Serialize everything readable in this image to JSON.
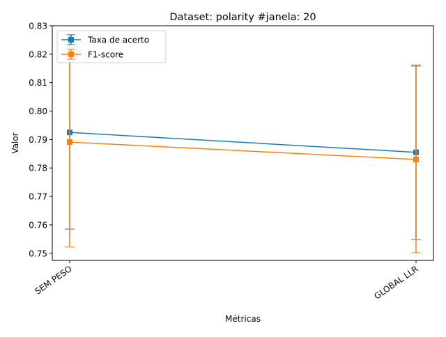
{
  "chart_data": {
    "type": "line",
    "title": "Dataset: polarity #janela: 20",
    "xlabel": "Métricas",
    "ylabel": "Valor",
    "categories": [
      "SEM PESO",
      "GLOBAL LLR"
    ],
    "ylim": [
      0.7475,
      0.83
    ],
    "yticks": [
      0.75,
      0.76,
      0.77,
      0.78,
      0.79,
      0.8,
      0.81,
      0.82,
      0.83
    ],
    "ytick_labels": [
      "0.75",
      "0.76",
      "0.77",
      "0.78",
      "0.79",
      "0.80",
      "0.81",
      "0.82",
      "0.83"
    ],
    "grid": false,
    "legend_position": "top-left",
    "series": [
      {
        "name": "Taxa de acerto",
        "color": "#1f77b4",
        "marker": "square",
        "values": [
          0.7925,
          0.7855
        ],
        "err_low": [
          0.7585,
          0.7548
        ],
        "err_high": [
          0.827,
          0.8162
        ]
      },
      {
        "name": "F1-score",
        "color": "#ff7f0e",
        "marker": "square",
        "values": [
          0.7891,
          0.783
        ],
        "err_low": [
          0.7522,
          0.7502
        ],
        "err_high": [
          0.8219,
          0.8158
        ]
      }
    ]
  }
}
